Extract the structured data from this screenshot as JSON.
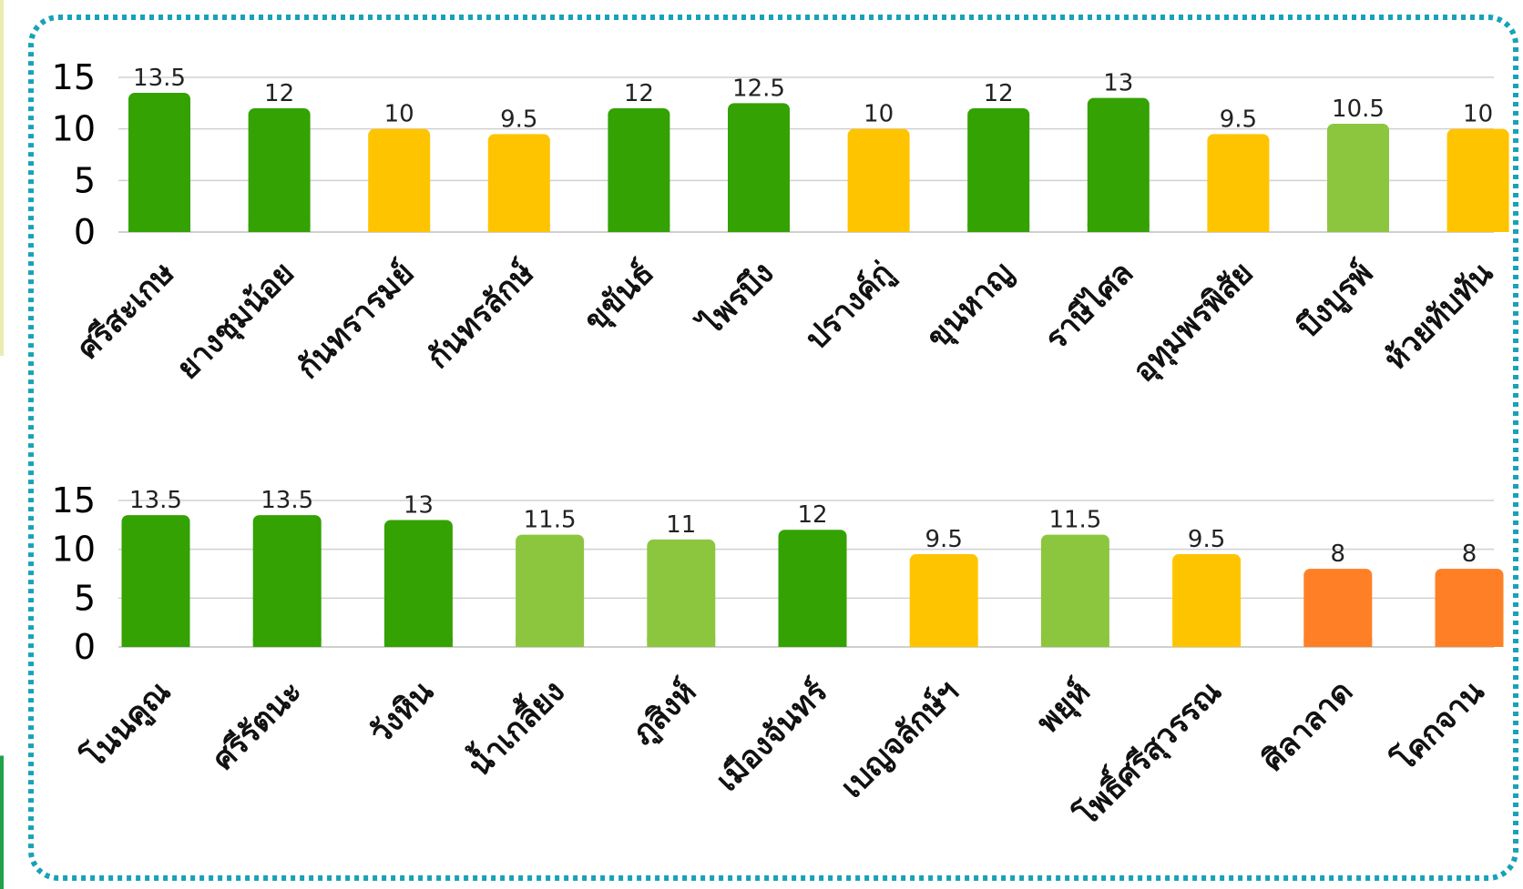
{
  "colors": {
    "frame": "#17a2b8",
    "dark_green": "#33a202",
    "light_green": "#8cc63f",
    "yellow": "#ffc400",
    "orange": "#ff7f27"
  },
  "chart_data": [
    {
      "type": "bar",
      "title": "",
      "xlabel": "",
      "ylabel": "",
      "ylim": [
        0,
        15
      ],
      "yticks": [
        "0",
        "5",
        "10",
        "15"
      ],
      "grid": true,
      "legend": "none",
      "categories": [
        "ศรีสะเกษ",
        "ยางชุมน้อย",
        "กันทรารมย์",
        "กันทรลักษ์",
        "ขุขันธ์",
        "ไพรบึง",
        "ปรางค์กู่",
        "ขุนหาญ",
        "ราษีไศล",
        "อุทุมพรพิสัย",
        "บึงบูรพ์",
        "ห้วยทับทัน"
      ],
      "values": [
        13.5,
        12,
        10,
        9.5,
        12,
        12.5,
        10,
        12,
        13,
        9.5,
        10.5,
        10
      ],
      "value_labels": [
        "13.5",
        "12",
        "10",
        "9.5",
        "12",
        "12.5",
        "10",
        "12",
        "13",
        "9.5",
        "10.5",
        "10"
      ],
      "bar_colors": [
        "#33a202",
        "#33a202",
        "#ffc400",
        "#ffc400",
        "#33a202",
        "#33a202",
        "#ffc400",
        "#33a202",
        "#33a202",
        "#ffc400",
        "#8cc63f",
        "#ffc400"
      ]
    },
    {
      "type": "bar",
      "title": "",
      "xlabel": "",
      "ylabel": "",
      "ylim": [
        0,
        15
      ],
      "yticks": [
        "0",
        "5",
        "10",
        "15"
      ],
      "grid": true,
      "legend": "none",
      "categories": [
        "โนนคูณ",
        "ศรีรัตนะ",
        "วังหิน",
        "น้ำเกลี้ยง",
        "ภูสิงห์",
        "เมืองจันทร์",
        "เบญจลักษ์ฯ",
        "พยุห์",
        "โพธิ์ศรีสุวรรณ",
        "ศิลาลาด",
        "โคกจาน"
      ],
      "values": [
        13.5,
        13.5,
        13,
        11.5,
        11,
        12,
        9.5,
        11.5,
        9.5,
        8,
        8
      ],
      "value_labels": [
        "13.5",
        "13.5",
        "13",
        "11.5",
        "11",
        "12",
        "9.5",
        "11.5",
        "9.5",
        "8",
        "8"
      ],
      "bar_colors": [
        "#33a202",
        "#33a202",
        "#33a202",
        "#8cc63f",
        "#8cc63f",
        "#33a202",
        "#ffc400",
        "#8cc63f",
        "#ffc400",
        "#ff7f27",
        "#ff7f27"
      ]
    }
  ]
}
